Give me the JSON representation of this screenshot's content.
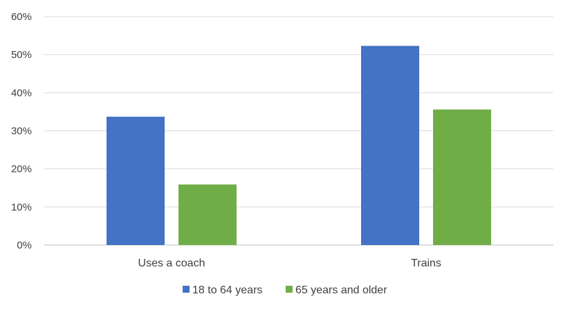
{
  "chart_data": {
    "type": "bar",
    "categories": [
      "Uses a coach",
      "Trains"
    ],
    "series": [
      {
        "name": "18 to 64 years",
        "values": [
          33.7,
          52.3
        ],
        "color": "#4472C4"
      },
      {
        "name": "65 years and older",
        "values": [
          15.9,
          35.6
        ],
        "color": "#70AD47"
      }
    ],
    "y_ticks": [
      "0%",
      "10%",
      "20%",
      "30%",
      "40%",
      "50%",
      "60%"
    ],
    "ylim": [
      0,
      60
    ],
    "grid": true,
    "legend_position": "bottom"
  }
}
